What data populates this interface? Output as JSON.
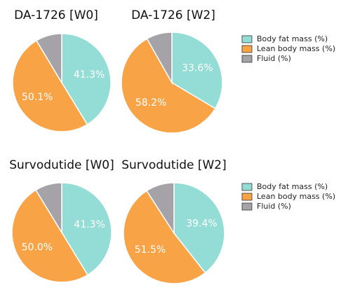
{
  "chart_data": [
    {
      "type": "pie",
      "title": "DA-1726 [W0]",
      "values": [
        41.3,
        50.1,
        8.6
      ],
      "value_labels": [
        "41.3%",
        "50.1%",
        null
      ],
      "colors": [
        "#94ddd6",
        "#f9a347",
        "#a5a3a7"
      ]
    },
    {
      "type": "pie",
      "title": "DA-1726 [W2]",
      "categories": [
        "Body fat mass (%)",
        "Lean body mass (%)",
        "Fluid (%)"
      ],
      "values": [
        33.6,
        58.2,
        8.2
      ],
      "value_labels": [
        "33.6%",
        "58.2%",
        null
      ],
      "colors": [
        "#94ddd6",
        "#f9a347",
        "#a5a3a7"
      ]
    },
    {
      "type": "pie",
      "title": "Survodutide [W0]",
      "values": [
        41.3,
        50.0,
        8.7
      ],
      "value_labels": [
        "41.3%",
        "50.0%",
        null
      ],
      "colors": [
        "#94ddd6",
        "#f9a347",
        "#a5a3a7"
      ]
    },
    {
      "type": "pie",
      "title": "Survodutide [W2]",
      "categories": [
        "Body fat mass (%)",
        "Lean body mass (%)",
        "Fluid (%)"
      ],
      "values": [
        39.4,
        51.5,
        9.1
      ],
      "value_labels": [
        "39.4%",
        "51.5%",
        null
      ],
      "colors": [
        "#94ddd6",
        "#f9a347",
        "#a5a3a7"
      ]
    }
  ]
}
